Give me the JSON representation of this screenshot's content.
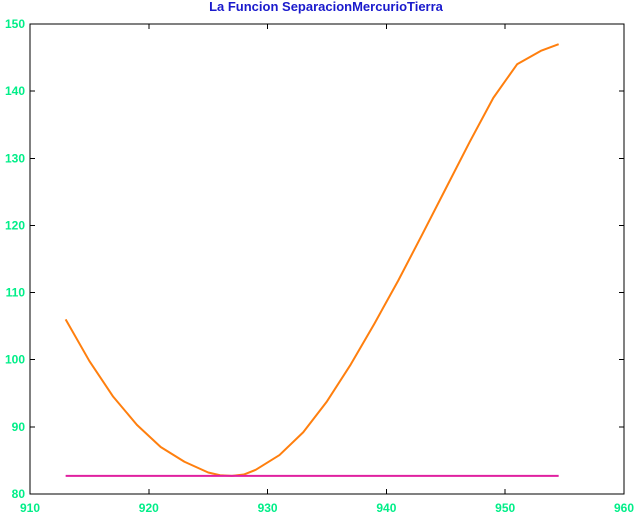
{
  "chart_data": {
    "type": "line",
    "title": "La Funcion SeparacionMercurioTierra",
    "xlabel": "",
    "ylabel": "",
    "xlim": [
      910,
      960
    ],
    "ylim": [
      80,
      150
    ],
    "xticks": [
      910,
      920,
      930,
      940,
      950,
      960
    ],
    "yticks": [
      80,
      90,
      100,
      110,
      120,
      130,
      140,
      150
    ],
    "grid": false,
    "legend": "none",
    "colors": {
      "title": "#1a1acc",
      "ticks": "#00ee88",
      "axes": "#000000"
    },
    "series": [
      {
        "color": "#ff7f0e",
        "x": [
          913,
          915,
          917,
          919,
          921,
          923,
          925,
          926,
          927,
          928,
          929,
          931,
          933,
          935,
          937,
          939,
          941,
          943,
          945,
          947,
          949,
          951,
          953,
          954.5
        ],
        "y": [
          106.0,
          99.8,
          94.5,
          90.3,
          87.0,
          84.8,
          83.2,
          82.8,
          82.7,
          82.9,
          83.6,
          85.8,
          89.2,
          93.8,
          99.3,
          105.4,
          111.8,
          118.6,
          125.5,
          132.4,
          139.0,
          144.0,
          146.0,
          147.0
        ]
      },
      {
        "color": "#e020a0",
        "x": [
          913,
          954.5
        ],
        "y": [
          82.7,
          82.7
        ]
      }
    ]
  }
}
